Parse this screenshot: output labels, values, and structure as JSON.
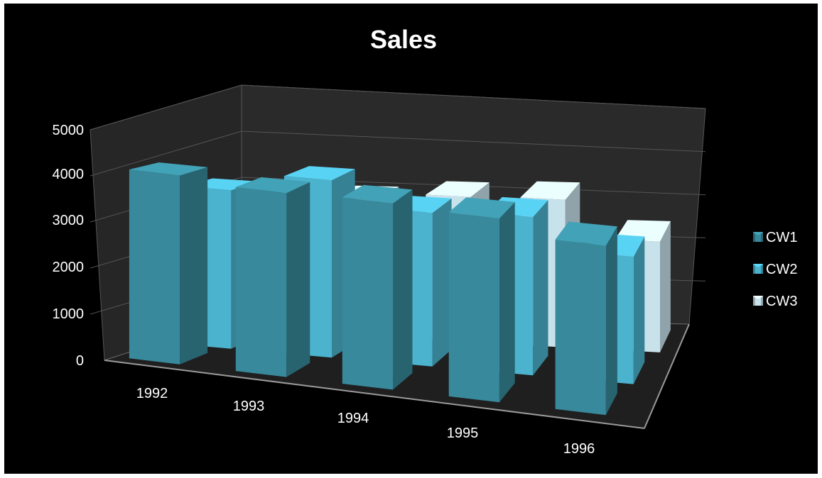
{
  "chart_data": {
    "type": "bar",
    "title": "Sales",
    "xlabel": "",
    "ylabel": "",
    "categories": [
      "1992",
      "1993",
      "1994",
      "1995",
      "1996"
    ],
    "series": [
      {
        "name": "CW1",
        "values": [
          3900,
          3800,
          3850,
          3800,
          3500
        ],
        "color": "#38899b"
      },
      {
        "name": "CW2",
        "values": [
          3350,
          3750,
          3250,
          3350,
          2700
        ],
        "color": "#4bb3ce"
      },
      {
        "name": "CW3",
        "values": [
          2800,
          3000,
          3150,
          3200,
          2400
        ],
        "color": "#c8e2ec"
      }
    ],
    "ylim": [
      0,
      5000
    ],
    "yticks": [
      0,
      1000,
      2000,
      3000,
      4000,
      5000
    ],
    "grid": true,
    "legend_position": "right",
    "background": "#000000",
    "wall_color": "#262626"
  }
}
